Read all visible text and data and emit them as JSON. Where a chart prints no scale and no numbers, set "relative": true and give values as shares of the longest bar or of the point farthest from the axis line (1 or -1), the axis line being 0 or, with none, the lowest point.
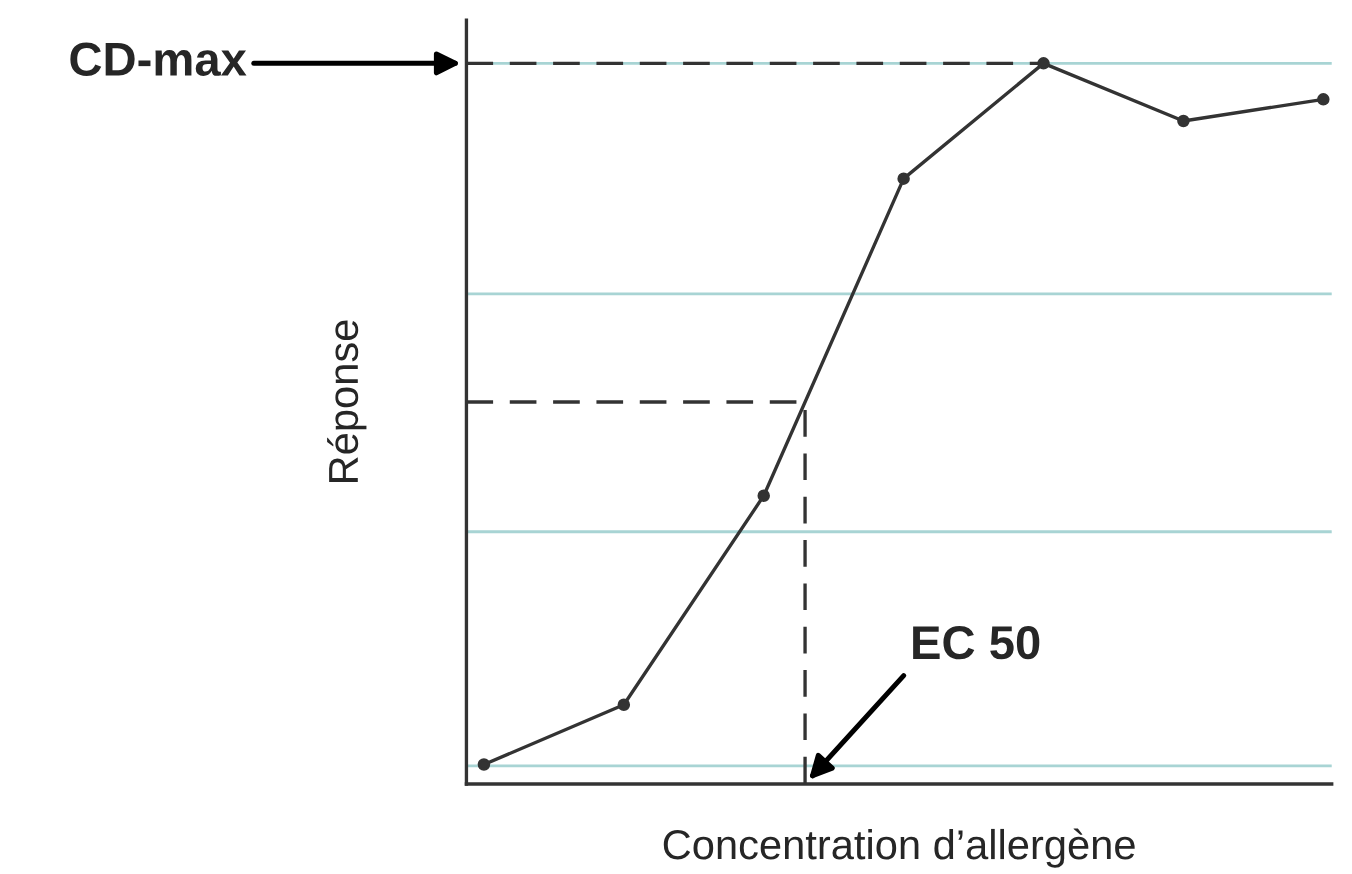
{
  "chart_data": {
    "type": "line",
    "relative": true,
    "xlabel": "Concentration d’allergène",
    "ylabel": "Réponse",
    "categories": [
      null,
      null,
      null,
      null,
      null,
      null,
      null
    ],
    "series": [
      {
        "color": "#333333",
        "values": [
          0.027,
          0.11,
          0.4,
          0.84,
          1,
          0.92,
          0.95
        ]
      }
    ],
    "marker": "circle",
    "ref_lines": [
      {
        "axis": "y",
        "value": 0.025,
        "color": "#a8d4d4"
      },
      {
        "axis": "y",
        "value": 0.35,
        "color": "#a8d4d4"
      },
      {
        "axis": "y",
        "value": 0.68,
        "color": "#a8d4d4"
      },
      {
        "axis": "y",
        "value": 1,
        "color": "#a8d4d4"
      },
      {
        "axis": "y",
        "value": 1,
        "color": "#333333",
        "line_style": "dashed"
      },
      {
        "axis": "y",
        "value": 0.53,
        "color": "#333333",
        "line_style": "dashed"
      }
    ],
    "annotations": [
      "CD-max",
      "EC 50"
    ]
  }
}
